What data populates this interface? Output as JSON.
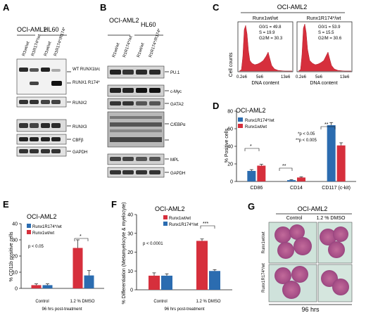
{
  "panels": {
    "A": {
      "letter": "A",
      "groups": [
        "OCI-AML2",
        "HL60"
      ],
      "lanes": [
        "R1wt/wt",
        "R1R174*/wt",
        "R1wt/wt",
        "R1R174*/R174*"
      ],
      "blot_labels": [
        "WT RUNX1b/c",
        "RUNX1 R174*",
        "RUNX2",
        "RUNX3",
        "CBFβ",
        "GAPDH"
      ]
    },
    "B": {
      "letter": "B",
      "groups": [
        "OCI-AML2",
        "HL60"
      ],
      "lanes": [
        "R1wt/wt",
        "R1R174*/wt",
        "R1wt/wt",
        "R1R174*/R174*"
      ],
      "blot_labels": [
        "PU.1",
        "c-Myc",
        "GATA2",
        "C/EBPα",
        "MPL",
        "GAPDH"
      ]
    },
    "C": {
      "letter": "C",
      "title": "OCI-AML2",
      "subtitles": [
        "Runx1wt/wt",
        "Runx1R174*/wt"
      ],
      "ylabel": "Cell counts",
      "xlabel": "DNA content",
      "ticks": [
        "0.2e6",
        "5e6",
        "13e6"
      ],
      "stats": [
        [
          "G0/1 = 49.8",
          "S = 19.9",
          "G2/M = 30.3"
        ],
        [
          "G0/1 = 53.9",
          "S = 15.5",
          "G2/M = 30.6"
        ]
      ]
    },
    "D": {
      "letter": "D",
      "sig1": "*p < 0.05",
      "sig2": "**p < 0.005",
      "star1": "*",
      "star2": "**",
      "star3": "**"
    },
    "E": {
      "letter": "E",
      "pval": "p < 0.05",
      "star": "*",
      "footer": "96 hrs post-treatment"
    },
    "F": {
      "letter": "F",
      "pval": "p < 0.0001",
      "star": "***",
      "footer": "96 hrs post-treatment"
    },
    "G": {
      "letter": "G",
      "title": "OCI-AML2",
      "cols": [
        "Control",
        "1.2 % DMSO"
      ],
      "rows": [
        "Runx1wt/wt",
        "Runx1R174*/wt"
      ],
      "footer": "96 hrs"
    }
  },
  "chart_data": [
    {
      "type": "bar",
      "title": "OCI-AML2",
      "ylabel": "% Positive cells",
      "categories": [
        "CD86",
        "CD14",
        "CD117 (c-kit)"
      ],
      "series": [
        {
          "name": "Runx1R174*/wt",
          "values": [
            12,
            1.5,
            64
          ],
          "errors": [
            1.5,
            0.5,
            3
          ],
          "color": "#2b6cb0"
        },
        {
          "name": "Runx1wt/wt",
          "values": [
            18,
            4.5,
            41
          ],
          "errors": [
            1.5,
            0.8,
            3
          ],
          "color": "#d62f3c"
        }
      ],
      "ylim": [
        0,
        80
      ],
      "yticks": [
        0,
        20,
        40,
        60,
        80
      ],
      "legend": "top-left"
    },
    {
      "type": "bar",
      "title": "OCI-AML2",
      "ylabel": "% CD11b positive cells",
      "xlabel": "96 hrs post-treatment",
      "categories": [
        "Control",
        "1.2 % DMSO"
      ],
      "series": [
        {
          "name": "Runx1wt/wt",
          "values": [
            2,
            25
          ],
          "errors": [
            0.8,
            5
          ],
          "color": "#d62f3c"
        },
        {
          "name": "Runx1R174*/wt",
          "values": [
            2,
            8
          ],
          "errors": [
            0.8,
            3
          ],
          "color": "#2b6cb0"
        }
      ],
      "ylim": [
        0,
        40
      ],
      "yticks": [
        0,
        10,
        20,
        30,
        40
      ],
      "legend": "top-left"
    },
    {
      "type": "bar",
      "title": "OCI-AML2",
      "ylabel": "% Differentiation (Metamyelocyte & myelocyte)",
      "xlabel": "96 hrs post-treatment",
      "categories": [
        "Control",
        "1.2 % DMSO"
      ],
      "series": [
        {
          "name": "Runx1wt/wt",
          "values": [
            7.5,
            26
          ],
          "errors": [
            1.5,
            1
          ],
          "color": "#d62f3c"
        },
        {
          "name": "Runx1R174*/wt",
          "values": [
            7.5,
            10
          ],
          "errors": [
            1,
            0.7
          ],
          "color": "#2b6cb0"
        }
      ],
      "ylim": [
        0,
        40
      ],
      "yticks": [
        0,
        10,
        20,
        30,
        40
      ],
      "legend": "top-left"
    }
  ]
}
